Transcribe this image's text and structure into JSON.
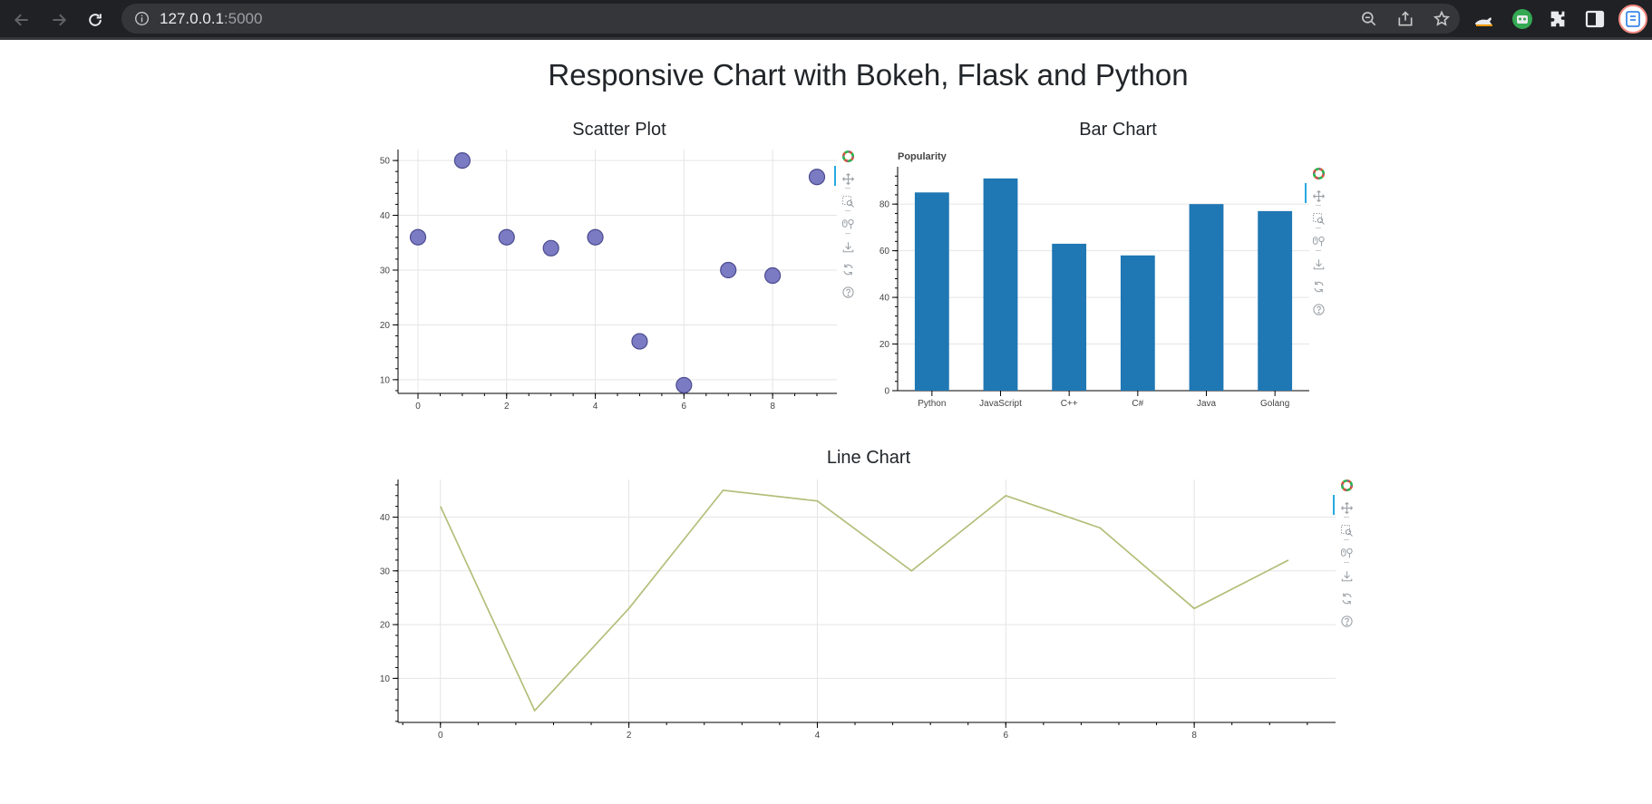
{
  "browser": {
    "url_host": "127.0.0.1",
    "url_port": ":5000"
  },
  "page": {
    "title": "Responsive Chart with Bokeh, Flask and Python"
  },
  "sections": {
    "scatter_title": "Scatter Plot",
    "bar_title": "Bar Chart",
    "line_title": "Line Chart"
  },
  "toolbar_icons": [
    "bokeh-logo-icon",
    "pan-icon",
    "box-zoom-icon",
    "wheel-zoom-icon",
    "save-icon",
    "reset-icon",
    "help-icon"
  ],
  "colors": {
    "scatter_fill": "#7b7bc4",
    "scatter_stroke": "#4b4b8f",
    "bar_fill": "#1f77b4",
    "line_stroke": "#b2bf7a",
    "grid": "#e5e5e5",
    "active_tool": "#26aae1"
  },
  "chart_data": [
    {
      "type": "scatter",
      "title": "Scatter Plot",
      "x": [
        0,
        1,
        2,
        3,
        4,
        5,
        6,
        7,
        8,
        9
      ],
      "y": [
        36,
        50,
        36,
        34,
        36,
        17,
        9,
        30,
        29,
        47
      ],
      "xlim": [
        -0.45,
        9.45
      ],
      "ylim": [
        7.5,
        52
      ],
      "xticks": [
        0,
        2,
        4,
        6,
        8
      ],
      "yticks": [
        10,
        20,
        30,
        40,
        50
      ],
      "grid": true
    },
    {
      "type": "bar",
      "title": "Popularity",
      "categories": [
        "Python",
        "JavaScript",
        "C++",
        "C#",
        "Java",
        "Golang"
      ],
      "values": [
        85,
        91,
        63,
        58,
        80,
        77
      ],
      "ylim": [
        0,
        96
      ],
      "yticks": [
        0,
        20,
        40,
        60,
        80
      ],
      "grid": true
    },
    {
      "type": "line",
      "title": "Line Chart",
      "x": [
        0,
        1,
        2,
        3,
        4,
        5,
        6,
        7,
        8,
        9
      ],
      "y": [
        42,
        4,
        23,
        45,
        43,
        30,
        44,
        38,
        23,
        32
      ],
      "xlim": [
        -0.45,
        9.5
      ],
      "ylim": [
        1.8,
        47
      ],
      "xticks": [
        0,
        2,
        4,
        6,
        8
      ],
      "yticks": [
        10,
        20,
        30,
        40
      ],
      "grid": true
    }
  ]
}
